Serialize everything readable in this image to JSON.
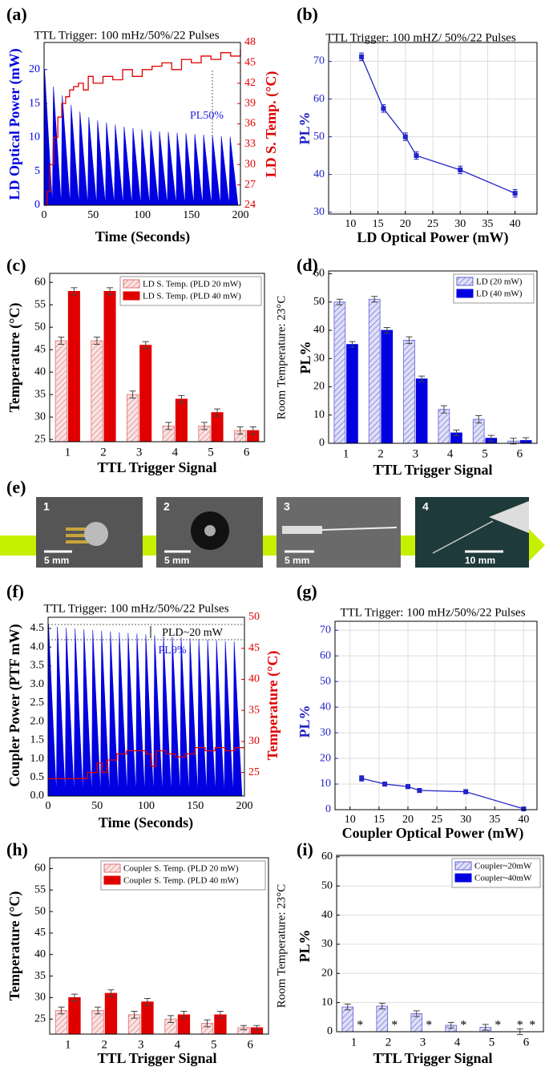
{
  "chart_data": [
    {
      "type": "line",
      "label": "(a)",
      "title": "TTL Trigger: 100 mHz/50%/22 Pulses",
      "xlabel": "Time (Seconds)",
      "ylabel": "LD Optical Power (mW)",
      "y2label": "LD S. Temp. (°C)",
      "annotations": [
        "PL50%"
      ],
      "series": [
        {
          "color": "#0000e0",
          "area": true,
          "x": [
            0,
            0.5,
            8.5,
            9.5,
            17.5,
            18.5,
            26.5,
            27.5,
            35.5,
            36.5,
            44.5,
            45.5,
            53.5,
            54.5,
            62.5,
            63.5,
            71.5,
            72.5,
            80.5,
            81.5,
            89.5,
            90.5,
            98.5,
            99.5,
            107.5,
            108.5,
            116.5,
            117.5,
            125.5,
            126.5,
            134.5,
            135.5,
            143.5,
            144.5,
            152.5,
            153.5,
            161.5,
            162.5,
            170.5,
            171.5,
            179.5,
            180.5,
            188.5,
            189.5,
            197.5
          ],
          "values": [
            0,
            20,
            0,
            17.5,
            0,
            16.2,
            0,
            14.8,
            0,
            13.8,
            0,
            13,
            0,
            12.5,
            0,
            12.2,
            0,
            11.9,
            0,
            11.6,
            0,
            11.4,
            0,
            11.2,
            0,
            11,
            0,
            10.9,
            0,
            10.8,
            0,
            10.7,
            0,
            10.6,
            0,
            10.5,
            0,
            10.4,
            0,
            10.3,
            0,
            10.2,
            0,
            10.1,
            0
          ]
        },
        {
          "color": "#e00000",
          "axis": "y2",
          "step": true,
          "x": [
            0,
            3,
            6,
            10,
            14,
            18,
            22,
            26,
            30,
            35,
            40,
            45,
            50,
            60,
            70,
            80,
            90,
            100,
            110,
            120,
            130,
            140,
            150,
            160,
            170,
            180,
            190,
            200
          ],
          "values": [
            24,
            26,
            30,
            34,
            37,
            39,
            40,
            41,
            41.5,
            42,
            41,
            43,
            42,
            43,
            42.5,
            44,
            43,
            44,
            44.5,
            45,
            44,
            45.5,
            45,
            46,
            45.5,
            46.5,
            46,
            47
          ]
        }
      ],
      "xlim": [
        0,
        200
      ],
      "xticks": [
        0,
        50,
        100,
        150,
        200
      ],
      "ylim": [
        0,
        24
      ],
      "yticks": [
        0,
        5,
        10,
        15,
        20
      ],
      "y2lim": [
        24,
        48
      ],
      "y2ticks": [
        24,
        27,
        30,
        33,
        36,
        39,
        42,
        45,
        48
      ]
    },
    {
      "type": "line",
      "label": "(b)",
      "title": "TTL Trigger: 100 mHZ/ 50%/22 Pulses",
      "xlabel": "LD Optical Power (mW)",
      "ylabel": "PL%",
      "grid": true,
      "series": [
        {
          "color": "#2323c8",
          "marker": true,
          "x": [
            12,
            16,
            20,
            22,
            30,
            40
          ],
          "values": [
            71.2,
            57.5,
            50,
            45,
            41.2,
            35
          ],
          "errors": [
            1,
            1,
            1,
            1,
            1,
            1
          ]
        }
      ],
      "xlim": [
        6,
        44
      ],
      "xticks": [
        10,
        15,
        20,
        25,
        30,
        35,
        40
      ],
      "ylim": [
        29.5,
        75
      ],
      "yticks": [
        30,
        40,
        50,
        60,
        70
      ]
    },
    {
      "type": "bar",
      "label": "(c)",
      "xlabel": "TTL Trigger Signal",
      "ylabel": "Temperature (°C)",
      "annotations": [
        "Room Temperature: 23°C"
      ],
      "legend": "upper right",
      "categories": [
        "1",
        "2",
        "3",
        "4",
        "5",
        "6"
      ],
      "series": [
        {
          "name": "LD S. Temp. (PLD 20 mW)",
          "color": "#e07070",
          "hatch": true,
          "values": [
            47,
            47,
            35,
            28,
            28,
            27
          ],
          "errors": [
            0.8,
            0.8,
            0.8,
            0.8,
            0.8,
            0.8
          ]
        },
        {
          "name": "LD S. Temp. (PLD 40 mW)",
          "color": "#e00000",
          "values": [
            58,
            58,
            46,
            34,
            31,
            27
          ],
          "errors": [
            0.8,
            0.8,
            0.8,
            0.8,
            0.8,
            0.8
          ]
        }
      ],
      "ylim": [
        24.5,
        62
      ],
      "yticks": [
        25,
        30,
        35,
        40,
        45,
        50,
        55,
        60
      ]
    },
    {
      "type": "bar",
      "label": "(d)",
      "xlabel": "TTL Trigger Signal",
      "ylabel": "PL%",
      "legend": "upper right",
      "categories": [
        "1",
        "2",
        "3",
        "4",
        "5",
        "6"
      ],
      "series": [
        {
          "name": "LD (20 mW)",
          "color": "#6060d8",
          "hatch": true,
          "values": [
            50,
            51,
            36.5,
            12,
            8.5,
            0.8
          ],
          "errors": [
            1,
            1,
            1.2,
            1.3,
            1.3,
            1
          ]
        },
        {
          "name": "LD (40 mW)",
          "color": "#0000e0",
          "values": [
            35,
            40,
            22.8,
            3.7,
            1.8,
            1
          ],
          "errors": [
            1,
            1,
            1,
            1,
            1,
            1
          ]
        }
      ],
      "ylim": [
        0,
        61
      ],
      "yticks": [
        0,
        10,
        20,
        30,
        40,
        50,
        60
      ]
    },
    {
      "type": "line",
      "label": "(f)",
      "title": "TTL Trigger: 100 mHz/50%/22 Pulses",
      "xlabel": "Time (Seconds)",
      "ylabel": "Coupler Power (PTF mW)",
      "y2label": "Temperature (°C)",
      "annotations": [
        "PLD~20 mW",
        "PL9%"
      ],
      "series": [
        {
          "color": "#0000e0",
          "area": true,
          "x": [
            0,
            0.5,
            8.5,
            9.5,
            17.5,
            18.5,
            26.5,
            27.5,
            35.5,
            36.5,
            44.5,
            45.5,
            53.5,
            54.5,
            62.5,
            63.5,
            71.5,
            72.5,
            80.5,
            81.5,
            89.5,
            90.5,
            98.5,
            99.5,
            107.5,
            108.5,
            116.5,
            117.5,
            125.5,
            126.5,
            134.5,
            135.5,
            143.5,
            144.5,
            152.5,
            153.5,
            161.5,
            162.5,
            170.5,
            171.5,
            179.5,
            180.5,
            188.5,
            189.5,
            197.5
          ],
          "values": [
            0,
            4.6,
            0,
            4.55,
            0,
            4.52,
            0,
            4.5,
            0,
            4.48,
            0,
            4.46,
            0,
            4.44,
            0,
            4.42,
            0,
            4.4,
            0,
            4.38,
            0,
            4.36,
            0,
            4.34,
            0,
            4.32,
            0,
            4.3,
            0,
            4.28,
            0,
            4.26,
            0,
            4.24,
            0,
            4.22,
            0,
            4.2,
            0,
            4.18,
            0,
            4.16,
            0,
            4.15,
            0
          ]
        },
        {
          "color": "#e00000",
          "axis": "y2",
          "step": true,
          "x": [
            0,
            20,
            40,
            50,
            55,
            60,
            70,
            80,
            100,
            105,
            110,
            120,
            130,
            140,
            150,
            160,
            170,
            180,
            190,
            200
          ],
          "values": [
            24,
            24,
            25,
            26.5,
            25,
            27,
            28,
            28.5,
            28,
            26,
            28.5,
            28,
            27.5,
            28,
            29,
            28.5,
            29,
            28.5,
            29,
            29
          ]
        }
      ],
      "xlim": [
        0,
        200
      ],
      "xticks": [
        0,
        50,
        100,
        150,
        200
      ],
      "ylim": [
        0,
        4.8
      ],
      "yticks": [
        {
          "value": 0,
          "label": "0.0"
        },
        0.5,
        {
          "value": 1,
          "label": "1.0"
        },
        1.5,
        {
          "value": 2,
          "label": "2.0"
        },
        2.5,
        {
          "value": 3,
          "label": "3.0"
        },
        3.5,
        {
          "value": 4,
          "label": "4.0"
        },
        4.5
      ],
      "y2lim": [
        21.2,
        50
      ],
      "y2ticks": [
        25,
        30,
        35,
        40,
        45,
        50
      ]
    },
    {
      "type": "line",
      "label": "(g)",
      "title": "TTL Trigger: 100 mHz/50%/22 Pulses",
      "xlabel": "Coupler Optical Power (mW)",
      "ylabel": "PL%",
      "grid": true,
      "series": [
        {
          "color": "#2323c8",
          "marker": true,
          "x": [
            12,
            16,
            20,
            22,
            30,
            40
          ],
          "values": [
            12.2,
            10,
            9,
            7.5,
            7,
            0.3
          ],
          "errors": [
            1,
            0.8,
            0.8,
            0.8,
            0.8,
            0.5
          ]
        }
      ],
      "xlim": [
        7.4,
        42.3
      ],
      "xticks": [
        10,
        15,
        20,
        25,
        30,
        35,
        40
      ],
      "ylim": [
        0,
        73.5
      ],
      "yticks": [
        0,
        10,
        20,
        30,
        40,
        50,
        60,
        70
      ]
    },
    {
      "type": "bar",
      "label": "(h)",
      "xlabel": "TTL Trigger Signal",
      "ylabel": "Temperature (°C)",
      "annotations": [
        "Room Temperature: 23°C"
      ],
      "legend": "upper right",
      "categories": [
        "1",
        "2",
        "3",
        "4",
        "5",
        "6"
      ],
      "series": [
        {
          "name": "Coupler S. Temp. (PLD 20 mW)",
          "color": "#e07070",
          "hatch": true,
          "values": [
            27,
            27,
            26,
            25,
            24,
            23
          ],
          "errors": [
            0.8,
            0.8,
            0.8,
            0.8,
            0.8,
            0.5
          ]
        },
        {
          "name": "Coupler S. Temp. (PLD 40 mW)",
          "color": "#e00000",
          "values": [
            30,
            31,
            29,
            26,
            26,
            23
          ],
          "errors": [
            0.8,
            0.8,
            0.8,
            0.8,
            0.8,
            0.5
          ]
        }
      ],
      "ylim": [
        21.5,
        62.5
      ],
      "yticks": [
        25,
        30,
        35,
        40,
        45,
        50,
        55,
        60
      ]
    },
    {
      "type": "bar",
      "label": "(i)",
      "xlabel": "TTL Trigger Signal",
      "ylabel": "PL%",
      "grid": true,
      "legend": "upper right",
      "categories": [
        "1",
        "2",
        "3",
        "4",
        "5",
        "6"
      ],
      "series": [
        {
          "name": "Coupler~20mW",
          "color": "#6060d8",
          "hatch": true,
          "values": [
            8.5,
            8.8,
            6.2,
            2.2,
            1.5,
            0
          ],
          "errors": [
            1,
            1,
            1,
            1,
            1,
            1
          ],
          "value_labels": [
            null,
            null,
            null,
            null,
            null,
            "*"
          ]
        },
        {
          "name": "Coupler~40mW",
          "color": "#0000e0",
          "values": [
            0,
            0,
            0,
            0,
            0,
            0
          ],
          "value_labels": [
            "*",
            "*",
            "*",
            "*",
            "*",
            "*"
          ]
        }
      ],
      "ylim": [
        0,
        60.5
      ],
      "yticks": [
        0,
        10,
        20,
        30,
        40,
        50,
        60
      ]
    }
  ],
  "figure_e": {
    "label": "(e)",
    "photos": [
      {
        "number": "1",
        "scale": "5 mm"
      },
      {
        "number": "2",
        "scale": "5 mm"
      },
      {
        "number": "3",
        "scale": "5 mm"
      },
      {
        "number": "4",
        "scale": "10 mm"
      }
    ]
  }
}
